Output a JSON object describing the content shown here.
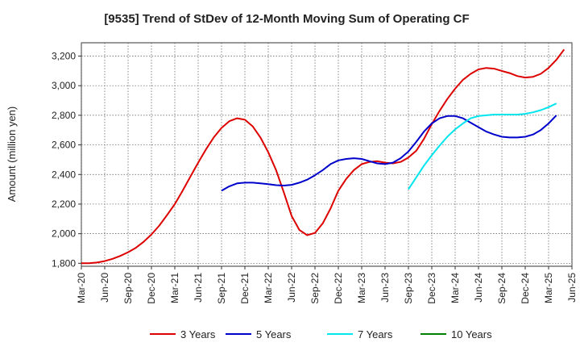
{
  "chart_data": {
    "type": "line",
    "title": "[9535]  Trend of StDev of 12-Month Moving Sum of Operating CF",
    "xlabel": "",
    "ylabel": "Amount (million yen)",
    "ylim": [
      1780,
      3290
    ],
    "yticks": [
      1800,
      2000,
      2200,
      2400,
      2600,
      2800,
      3000,
      3200
    ],
    "ytick_labels": [
      "1,800",
      "2,000",
      "2,200",
      "2,400",
      "2,600",
      "2,800",
      "3,000",
      "3,200"
    ],
    "xlim_months": [
      0,
      63
    ],
    "xtick_labels": [
      "Mar-20",
      "Jun-20",
      "Sep-20",
      "Dec-20",
      "Mar-21",
      "Jun-21",
      "Sep-21",
      "Dec-21",
      "Mar-22",
      "Jun-22",
      "Sep-22",
      "Dec-22",
      "Mar-23",
      "Jun-23",
      "Sep-23",
      "Dec-23",
      "Mar-24",
      "Jun-24",
      "Sep-24",
      "Dec-24",
      "Mar-25",
      "Jun-25"
    ],
    "grid": true,
    "legend_position": "bottom",
    "series": [
      {
        "name": "3 Years",
        "color": "#dd0000",
        "start_month": 0,
        "values": [
          1800,
          1800,
          1805,
          1815,
          1830,
          1850,
          1875,
          1905,
          1945,
          1995,
          2055,
          2125,
          2200,
          2290,
          2385,
          2480,
          2570,
          2650,
          2715,
          2760,
          2780,
          2770,
          2725,
          2650,
          2550,
          2430,
          2280,
          2120,
          2025,
          1990,
          2005,
          2070,
          2170,
          2290,
          2370,
          2430,
          2470,
          2485,
          2490,
          2480,
          2475,
          2485,
          2515,
          2560,
          2640,
          2740,
          2830,
          2910,
          2980,
          3040,
          3080,
          3110,
          3120,
          3115,
          3100,
          3085,
          3065,
          3055,
          3060,
          3080,
          3120,
          3175,
          3245
        ]
      },
      {
        "name": "5 Years",
        "color": "#0000cc",
        "start_month": 18,
        "values": [
          2290,
          2320,
          2340,
          2345,
          2345,
          2340,
          2335,
          2328,
          2325,
          2330,
          2345,
          2365,
          2395,
          2430,
          2470,
          2495,
          2505,
          2510,
          2505,
          2490,
          2475,
          2470,
          2480,
          2510,
          2555,
          2620,
          2690,
          2745,
          2780,
          2795,
          2795,
          2780,
          2750,
          2720,
          2690,
          2670,
          2655,
          2650,
          2650,
          2655,
          2670,
          2700,
          2745,
          2800
        ]
      },
      {
        "name": "7 Years",
        "color": "#00e5ee",
        "start_month": 42,
        "values": [
          2300,
          2380,
          2460,
          2530,
          2595,
          2655,
          2705,
          2745,
          2780,
          2795,
          2800,
          2805,
          2805,
          2805,
          2805,
          2810,
          2820,
          2835,
          2855,
          2880
        ]
      },
      {
        "name": "10 Years",
        "color": "#008000",
        "start_month": 0,
        "values": []
      }
    ]
  }
}
